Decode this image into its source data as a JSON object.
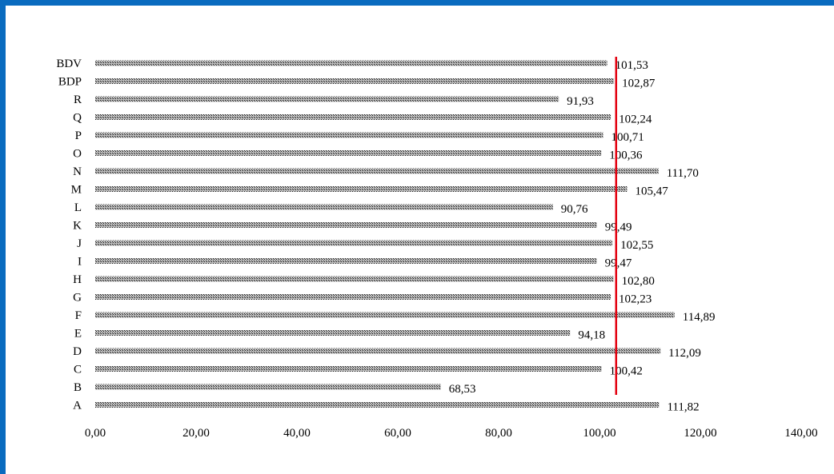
{
  "colors": {
    "frame": "#0a6bbf",
    "bar_fill": "#bdbdbd",
    "bar_hatch": "#1a1a1a",
    "ref_line": "#e3000f"
  },
  "chart_data": {
    "type": "bar",
    "orientation": "horizontal",
    "categories": [
      "BDV",
      "BDP",
      "R",
      "Q",
      "P",
      "O",
      "N",
      "M",
      "L",
      "K",
      "J",
      "I",
      "H",
      "G",
      "F",
      "E",
      "D",
      "C",
      "B",
      "A"
    ],
    "values": [
      101.53,
      102.87,
      91.93,
      102.24,
      100.71,
      100.36,
      111.7,
      105.47,
      90.76,
      99.49,
      102.55,
      99.47,
      102.8,
      102.23,
      114.89,
      94.18,
      112.09,
      100.42,
      68.53,
      111.82
    ],
    "value_labels": [
      "101,53",
      "102,87",
      "91,93",
      "102,24",
      "100,71",
      "100,36",
      "111,70",
      "105,47",
      "90,76",
      "99,49",
      "102,55",
      "99,47",
      "102,80",
      "102,23",
      "114,89",
      "94,18",
      "112,09",
      "100,42",
      "68,53",
      "111,82"
    ],
    "xlim": [
      0,
      140
    ],
    "xticks": [
      0,
      20,
      40,
      60,
      80,
      100,
      120,
      140
    ],
    "xtick_labels": [
      "0,00",
      "20,00",
      "40,00",
      "60,00",
      "80,00",
      "100,00",
      "120,00",
      "140,00"
    ],
    "reference_line": 103.3,
    "title": "",
    "xlabel": "",
    "ylabel": "",
    "grid": false,
    "legend": "none"
  }
}
